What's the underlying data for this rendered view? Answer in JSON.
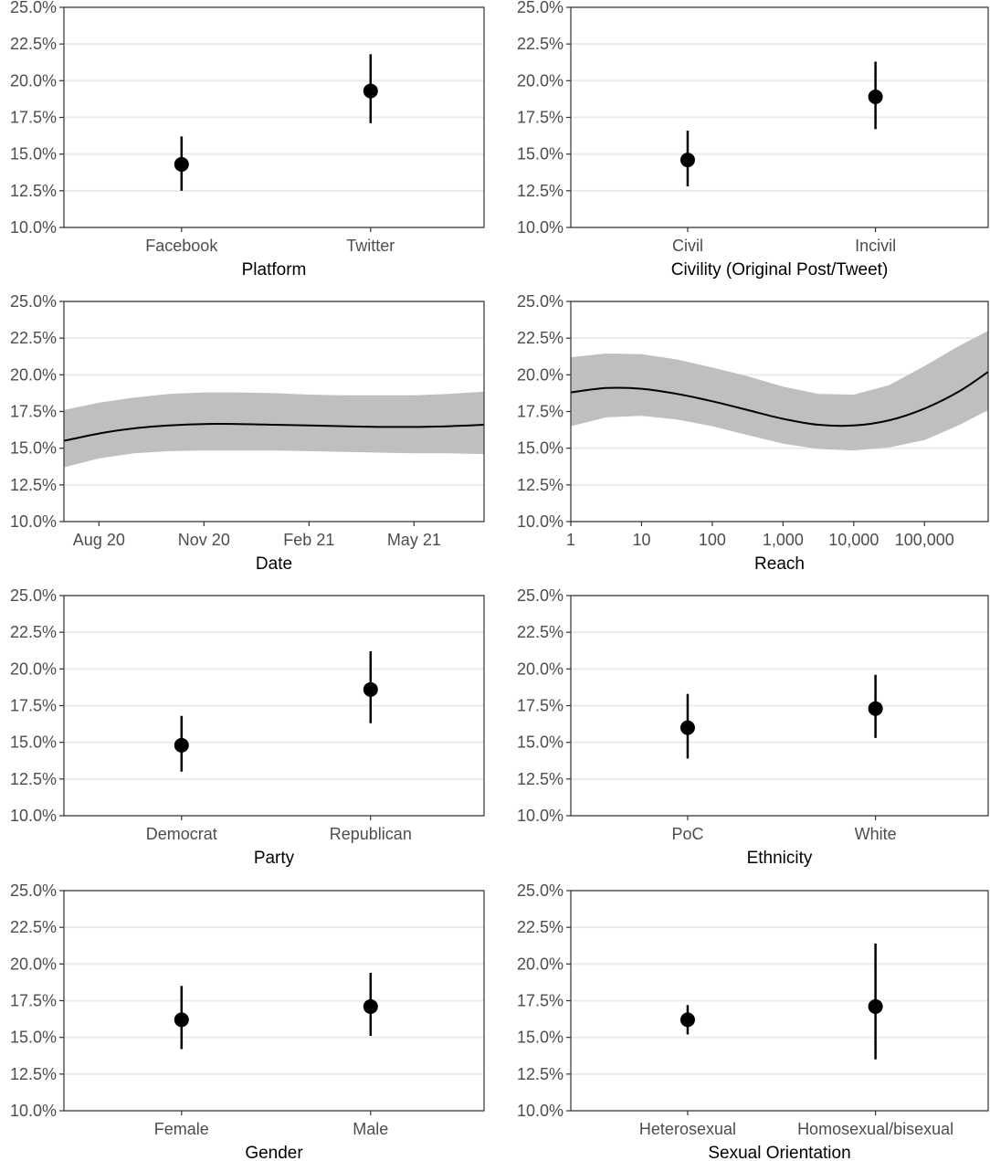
{
  "chart_data": [
    {
      "type": "scatter",
      "xlabel": "Platform",
      "ylabel": "",
      "ylim": [
        10,
        25
      ],
      "yticks": [
        "10.0%",
        "12.5%",
        "15.0%",
        "17.5%",
        "20.0%",
        "22.5%",
        "25.0%"
      ],
      "categories": [
        "Facebook",
        "Twitter"
      ],
      "estimates": [
        14.3,
        19.3
      ],
      "lower": [
        12.5,
        17.1
      ],
      "upper": [
        16.2,
        21.8
      ]
    },
    {
      "type": "scatter",
      "xlabel": "Civility (Original Post/Tweet)",
      "ylabel": "",
      "ylim": [
        10,
        25
      ],
      "yticks": [
        "10.0%",
        "12.5%",
        "15.0%",
        "17.5%",
        "20.0%",
        "22.5%",
        "25.0%"
      ],
      "categories": [
        "Civil",
        "Incivil"
      ],
      "estimates": [
        14.6,
        18.9
      ],
      "lower": [
        12.8,
        16.7
      ],
      "upper": [
        16.6,
        21.3
      ]
    },
    {
      "type": "line",
      "xlabel": "Date",
      "ylabel": "",
      "ylim": [
        10,
        25
      ],
      "yticks": [
        "10.0%",
        "12.5%",
        "15.0%",
        "17.5%",
        "20.0%",
        "22.5%",
        "25.0%"
      ],
      "xlim": [
        0,
        12
      ],
      "xticks": [
        {
          "value": 1,
          "label": "Aug 20"
        },
        {
          "value": 4,
          "label": "Nov 20"
        },
        {
          "value": 7,
          "label": "Feb 21"
        },
        {
          "value": 10,
          "label": "May 21"
        }
      ],
      "x": [
        0,
        1,
        2,
        3,
        4,
        5,
        6,
        7,
        8,
        9,
        10,
        11,
        12
      ],
      "y": [
        15.5,
        16.0,
        16.35,
        16.55,
        16.65,
        16.65,
        16.6,
        16.55,
        16.5,
        16.45,
        16.45,
        16.5,
        16.6
      ],
      "lower": [
        13.7,
        14.3,
        14.65,
        14.8,
        14.85,
        14.85,
        14.85,
        14.8,
        14.75,
        14.7,
        14.65,
        14.65,
        14.6
      ],
      "upper": [
        17.6,
        18.1,
        18.45,
        18.7,
        18.8,
        18.8,
        18.75,
        18.65,
        18.6,
        18.6,
        18.6,
        18.7,
        18.85
      ]
    },
    {
      "type": "line",
      "xlabel": "Reach",
      "ylabel": "",
      "ylim": [
        10,
        25
      ],
      "yticks": [
        "10.0%",
        "12.5%",
        "15.0%",
        "17.5%",
        "20.0%",
        "22.5%",
        "25.0%"
      ],
      "xscale": "log10",
      "xlim": [
        0,
        5.9
      ],
      "xticks": [
        {
          "value": 0,
          "label": "1"
        },
        {
          "value": 1,
          "label": "10"
        },
        {
          "value": 2,
          "label": "100"
        },
        {
          "value": 3,
          "label": "1,000"
        },
        {
          "value": 4,
          "label": "10,000"
        },
        {
          "value": 5,
          "label": "100,000"
        }
      ],
      "x": [
        0,
        0.5,
        1,
        1.5,
        2,
        2.5,
        3,
        3.5,
        4,
        4.5,
        5,
        5.5,
        5.9
      ],
      "y": [
        18.8,
        19.1,
        19.05,
        18.7,
        18.2,
        17.6,
        17.0,
        16.6,
        16.55,
        16.9,
        17.7,
        18.9,
        20.2
      ],
      "lower": [
        16.5,
        17.1,
        17.2,
        16.95,
        16.5,
        15.9,
        15.3,
        14.95,
        14.85,
        15.05,
        15.55,
        16.6,
        17.6
      ],
      "upper": [
        21.2,
        21.45,
        21.4,
        21.05,
        20.5,
        19.9,
        19.2,
        18.7,
        18.65,
        19.3,
        20.6,
        22.0,
        23.0
      ]
    },
    {
      "type": "scatter",
      "xlabel": "Party",
      "ylabel": "",
      "ylim": [
        10,
        25
      ],
      "yticks": [
        "10.0%",
        "12.5%",
        "15.0%",
        "17.5%",
        "20.0%",
        "22.5%",
        "25.0%"
      ],
      "categories": [
        "Democrat",
        "Republican"
      ],
      "estimates": [
        14.8,
        18.6
      ],
      "lower": [
        13.0,
        16.3
      ],
      "upper": [
        16.8,
        21.2
      ]
    },
    {
      "type": "scatter",
      "xlabel": "Ethnicity",
      "ylabel": "",
      "ylim": [
        10,
        25
      ],
      "yticks": [
        "10.0%",
        "12.5%",
        "15.0%",
        "17.5%",
        "20.0%",
        "22.5%",
        "25.0%"
      ],
      "categories": [
        "PoC",
        "White"
      ],
      "estimates": [
        16.0,
        17.3
      ],
      "lower": [
        13.9,
        15.3
      ],
      "upper": [
        18.3,
        19.6
      ]
    },
    {
      "type": "scatter",
      "xlabel": "Gender",
      "ylabel": "",
      "ylim": [
        10,
        25
      ],
      "yticks": [
        "10.0%",
        "12.5%",
        "15.0%",
        "17.5%",
        "20.0%",
        "22.5%",
        "25.0%"
      ],
      "categories": [
        "Female",
        "Male"
      ],
      "estimates": [
        16.2,
        17.1
      ],
      "lower": [
        14.2,
        15.1
      ],
      "upper": [
        18.5,
        19.4
      ]
    },
    {
      "type": "scatter",
      "xlabel": "Sexual Orientation",
      "ylabel": "",
      "ylim": [
        10,
        25
      ],
      "yticks": [
        "10.0%",
        "12.5%",
        "15.0%",
        "17.5%",
        "20.0%",
        "22.5%",
        "25.0%"
      ],
      "categories": [
        "Heterosexual",
        "Homosexual/bisexual"
      ],
      "estimates": [
        16.2,
        17.1
      ],
      "lower": [
        15.2,
        13.5
      ],
      "upper": [
        17.2,
        21.4
      ]
    }
  ]
}
